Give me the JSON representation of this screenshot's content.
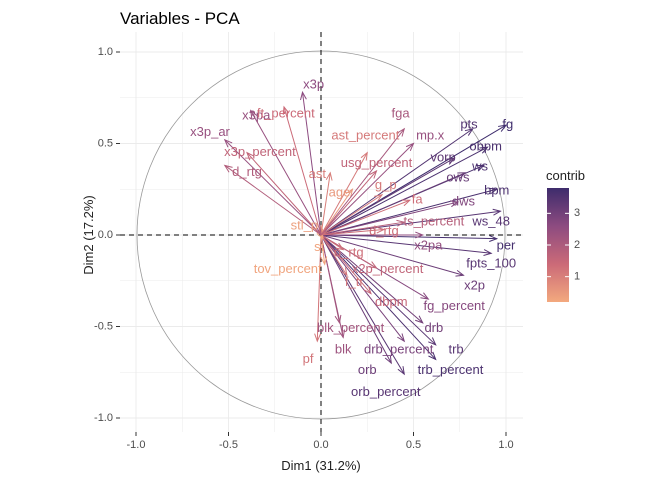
{
  "chart_data": {
    "type": "scatter",
    "title": "Variables - PCA",
    "xlabel": "Dim1 (31.2%)",
    "ylabel": "Dim2 (17.2%)",
    "xlim": [
      -1.0,
      1.0
    ],
    "ylim": [
      -1.0,
      1.0
    ],
    "x_ticks": [
      -1.0,
      -0.5,
      0.0,
      0.5,
      1.0
    ],
    "y_ticks": [
      -1.0,
      -0.5,
      0.0,
      0.5,
      1.0
    ],
    "x_tick_labels": [
      "-1.0",
      "-0.5",
      "0.0",
      "0.5",
      "1.0"
    ],
    "y_tick_labels": [
      "-1.0",
      "-0.5",
      "0.0",
      "0.5",
      "1.0"
    ],
    "grid": true,
    "unit_circle": true,
    "legend": {
      "title": "contrib",
      "position": "right",
      "ticks": [
        "1",
        "2",
        "3"
      ],
      "range": [
        0.2,
        3.8
      ],
      "colors": [
        "#f3a97e",
        "#cb6a78",
        "#8d4b80",
        "#3e2c6c"
      ]
    },
    "series": [
      {
        "name": "fg",
        "x": 1.0,
        "y": 0.6,
        "contrib": 3.8
      },
      {
        "name": "pts",
        "x": 0.82,
        "y": 0.58,
        "contrib": 3.5
      },
      {
        "name": "obpm",
        "x": 0.9,
        "y": 0.48,
        "contrib": 3.6
      },
      {
        "name": "vorp",
        "x": 0.72,
        "y": 0.42,
        "contrib": 3.3
      },
      {
        "name": "ws",
        "x": 0.88,
        "y": 0.38,
        "contrib": 3.6
      },
      {
        "name": "ows",
        "x": 0.78,
        "y": 0.34,
        "contrib": 3.2
      },
      {
        "name": "bpm",
        "x": 0.95,
        "y": 0.25,
        "contrib": 3.6
      },
      {
        "name": "dws",
        "x": 0.74,
        "y": 0.18,
        "contrib": 2.8
      },
      {
        "name": "ws_48",
        "x": 0.97,
        "y": 0.13,
        "contrib": 3.4
      },
      {
        "name": "per",
        "x": 0.95,
        "y": -0.02,
        "contrib": 3.7
      },
      {
        "name": "fg_percent",
        "x": 0.58,
        "y": -0.35,
        "contrib": 2.7
      },
      {
        "name": "x2pa",
        "x": 0.55,
        "y": 0.0,
        "contrib": 2.5
      },
      {
        "name": "fpts_100",
        "x": 0.92,
        "y": -0.1,
        "contrib": 3.4
      },
      {
        "name": "x2p",
        "x": 0.77,
        "y": -0.22,
        "contrib": 3.1
      },
      {
        "name": "drb",
        "x": 0.55,
        "y": -0.48,
        "contrib": 3.0
      },
      {
        "name": "trb",
        "x": 0.62,
        "y": -0.6,
        "contrib": 3.4
      },
      {
        "name": "trb_percent",
        "x": 0.62,
        "y": -0.68,
        "contrib": 3.6
      },
      {
        "name": "orb",
        "x": 0.38,
        "y": -0.7,
        "contrib": 3.1
      },
      {
        "name": "orb_percent",
        "x": 0.45,
        "y": -0.76,
        "contrib": 3.4
      },
      {
        "name": "drb_percent",
        "x": 0.45,
        "y": -0.58,
        "contrib": 2.9
      },
      {
        "name": "blk",
        "x": 0.12,
        "y": -0.56,
        "contrib": 2.3
      },
      {
        "name": "blk_percent",
        "x": 0.1,
        "y": -0.48,
        "contrib": 2.2
      },
      {
        "name": "pf",
        "x": -0.02,
        "y": -0.58,
        "contrib": 1.2
      },
      {
        "name": "dbpm",
        "x": 0.27,
        "y": -0.32,
        "contrib": 1.5
      },
      {
        "name": "f_tr",
        "x": 0.14,
        "y": -0.22,
        "contrib": 1.2
      },
      {
        "name": "x2p_percent",
        "x": 0.3,
        "y": -0.18,
        "contrib": 1.6
      },
      {
        "name": "ts_percent",
        "x": 0.45,
        "y": 0.07,
        "contrib": 1.8
      },
      {
        "name": "o_rtg",
        "x": 0.12,
        "y": -0.08,
        "contrib": 1.3
      },
      {
        "name": "d_rtg",
        "x": 0.34,
        "y": 0.03,
        "contrib": 1.3
      },
      {
        "name": "st",
        "x": 0.01,
        "y": -0.02,
        "contrib": 0.3
      },
      {
        "name": "stl_p",
        "x": 0.0,
        "y": 0.05,
        "contrib": 0.4
      },
      {
        "name": "tov_percent",
        "x": 0.02,
        "y": -0.16,
        "contrib": 0.3
      },
      {
        "name": "age",
        "x": 0.17,
        "y": 0.25,
        "contrib": 0.5
      },
      {
        "name": "g_p",
        "x": 0.33,
        "y": 0.22,
        "contrib": 1.1
      },
      {
        "name": "fa",
        "x": 0.48,
        "y": 0.19,
        "contrib": 1.3
      },
      {
        "name": "fga",
        "x": 0.45,
        "y": 0.58,
        "contrib": 2.1
      },
      {
        "name": "mp.x",
        "x": 0.5,
        "y": 0.5,
        "contrib": 2.4
      },
      {
        "name": "ast_percent",
        "x": 0.25,
        "y": 0.45,
        "contrib": 1.1
      },
      {
        "name": "usg_percent",
        "x": 0.3,
        "y": 0.35,
        "contrib": 1.6
      },
      {
        "name": "ast",
        "x": 0.05,
        "y": 0.34,
        "contrib": 1.0
      },
      {
        "name": "x3p",
        "x": -0.1,
        "y": 0.78,
        "contrib": 2.6
      },
      {
        "name": "ft_percent",
        "x": -0.2,
        "y": 0.7,
        "contrib": 1.4
      },
      {
        "name": "x3pa",
        "x": -0.38,
        "y": 0.68,
        "contrib": 2.4
      },
      {
        "name": "x3p_ar",
        "x": -0.52,
        "y": 0.52,
        "contrib": 2.4
      },
      {
        "name": "x3p_percent",
        "x": -0.4,
        "y": 0.45,
        "contrib": 1.6
      },
      {
        "name": "d_rtg",
        "x": -0.52,
        "y": 0.38,
        "contrib": 1.9
      }
    ],
    "labels": [
      {
        "text": "x3p",
        "x": -0.04,
        "y": 0.82,
        "contrib": 2.6
      },
      {
        "text": "x3pa",
        "x": -0.35,
        "y": 0.65,
        "contrib": 2.4
      },
      {
        "text": "ft_percent",
        "x": -0.19,
        "y": 0.66,
        "contrib": 1.4
      },
      {
        "text": "fga",
        "x": 0.43,
        "y": 0.66,
        "contrib": 2.1
      },
      {
        "text": "pts",
        "x": 0.8,
        "y": 0.6,
        "contrib": 3.5
      },
      {
        "text": "fg",
        "x": 1.01,
        "y": 0.6,
        "contrib": 3.8
      },
      {
        "text": "x3p_ar",
        "x": -0.6,
        "y": 0.56,
        "contrib": 2.4
      },
      {
        "text": "ast_percent",
        "x": 0.24,
        "y": 0.54,
        "contrib": 1.1
      },
      {
        "text": "mp.x",
        "x": 0.59,
        "y": 0.54,
        "contrib": 2.4
      },
      {
        "text": "obpm",
        "x": 0.89,
        "y": 0.48,
        "contrib": 3.6
      },
      {
        "text": "x3p_percent",
        "x": -0.33,
        "y": 0.45,
        "contrib": 1.6
      },
      {
        "text": "vorp",
        "x": 0.66,
        "y": 0.42,
        "contrib": 3.3
      },
      {
        "text": "usg_percent",
        "x": 0.3,
        "y": 0.39,
        "contrib": 1.6
      },
      {
        "text": "ws",
        "x": 0.86,
        "y": 0.37,
        "contrib": 3.6
      },
      {
        "text": "d_rtg",
        "x": -0.4,
        "y": 0.34,
        "contrib": 1.9
      },
      {
        "text": "ast",
        "x": -0.02,
        "y": 0.33,
        "contrib": 1.0
      },
      {
        "text": "ows",
        "x": 0.74,
        "y": 0.31,
        "contrib": 3.2
      },
      {
        "text": "g_p",
        "x": 0.35,
        "y": 0.27,
        "contrib": 1.1
      },
      {
        "text": "age",
        "x": 0.1,
        "y": 0.23,
        "contrib": 0.5
      },
      {
        "text": "fa",
        "x": 0.52,
        "y": 0.19,
        "contrib": 1.3
      },
      {
        "text": "bpm",
        "x": 0.95,
        "y": 0.24,
        "contrib": 3.6
      },
      {
        "text": "dws",
        "x": 0.77,
        "y": 0.18,
        "contrib": 2.8
      },
      {
        "text": "ws_48",
        "x": 0.92,
        "y": 0.07,
        "contrib": 3.4
      },
      {
        "text": "ts_percent",
        "x": 0.61,
        "y": 0.07,
        "contrib": 1.8
      },
      {
        "text": "stl_p",
        "x": -0.09,
        "y": 0.05,
        "contrib": 0.4
      },
      {
        "text": "d_rtg",
        "x": 0.34,
        "y": 0.02,
        "contrib": 1.3
      },
      {
        "text": "x2pa",
        "x": 0.58,
        "y": -0.06,
        "contrib": 2.5
      },
      {
        "text": "per",
        "x": 1.0,
        "y": -0.06,
        "contrib": 3.7
      },
      {
        "text": "st",
        "x": -0.01,
        "y": -0.07,
        "contrib": 0.3
      },
      {
        "text": "o_rtg",
        "x": 0.15,
        "y": -0.1,
        "contrib": 1.3
      },
      {
        "text": "fpts_100",
        "x": 0.92,
        "y": -0.16,
        "contrib": 3.4
      },
      {
        "text": "tov_percent",
        "x": -0.18,
        "y": -0.19,
        "contrib": 0.3
      },
      {
        "text": "x2p_percent",
        "x": 0.36,
        "y": -0.19,
        "contrib": 1.6
      },
      {
        "text": "x2p",
        "x": 0.83,
        "y": -0.28,
        "contrib": 3.1
      },
      {
        "text": "f_tr",
        "x": 0.18,
        "y": -0.26,
        "contrib": 1.2
      },
      {
        "text": "dbpm",
        "x": 0.38,
        "y": -0.37,
        "contrib": 1.5
      },
      {
        "text": "fg_percent",
        "x": 0.72,
        "y": -0.39,
        "contrib": 2.7
      },
      {
        "text": "blk_percent",
        "x": 0.16,
        "y": -0.51,
        "contrib": 2.2
      },
      {
        "text": "drb",
        "x": 0.61,
        "y": -0.51,
        "contrib": 3.0
      },
      {
        "text": "blk",
        "x": 0.12,
        "y": -0.63,
        "contrib": 2.3
      },
      {
        "text": "drb_percent",
        "x": 0.42,
        "y": -0.63,
        "contrib": 2.9
      },
      {
        "text": "trb",
        "x": 0.73,
        "y": -0.63,
        "contrib": 3.4
      },
      {
        "text": "pf",
        "x": -0.07,
        "y": -0.68,
        "contrib": 1.2
      },
      {
        "text": "orb",
        "x": 0.25,
        "y": -0.74,
        "contrib": 3.1
      },
      {
        "text": "trb_percent",
        "x": 0.7,
        "y": -0.74,
        "contrib": 3.6
      },
      {
        "text": "orb_percent",
        "x": 0.35,
        "y": -0.86,
        "contrib": 3.4
      }
    ]
  }
}
